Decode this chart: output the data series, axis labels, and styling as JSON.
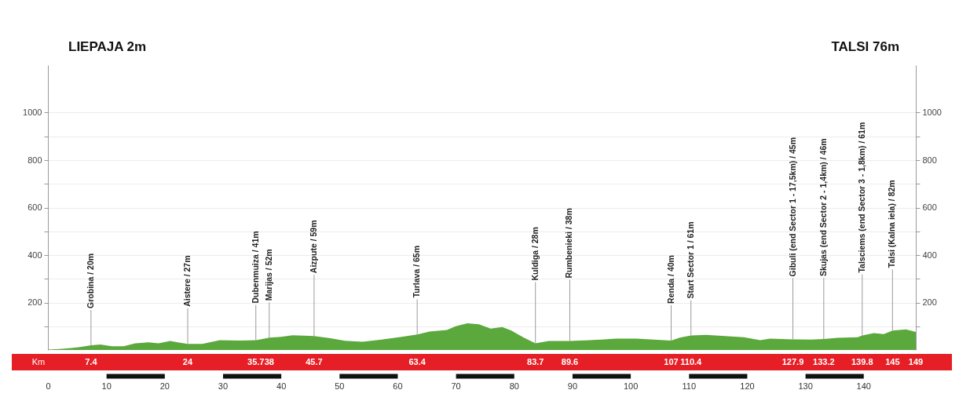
{
  "chart_data": {
    "type": "area",
    "x": [
      0,
      2,
      4,
      5.5,
      7.4,
      9,
      11,
      13,
      15,
      17.3,
      19,
      21,
      22.5,
      24,
      26.5,
      29.5,
      33,
      35.7,
      36.5,
      38,
      40,
      42,
      44,
      45.7,
      48.5,
      51,
      54,
      57,
      60,
      63.4,
      65.5,
      68.5,
      70,
      72,
      74,
      76,
      78,
      79.5,
      81.7,
      83.7,
      86,
      89.6,
      93,
      97.5,
      101,
      104.6,
      107,
      108.5,
      110.4,
      113,
      119.5,
      122.3,
      124,
      127.9,
      131,
      133.2,
      135.5,
      139,
      139.8,
      141.8,
      143.5,
      145,
      147.3,
      149
    ],
    "series": [
      {
        "color": "#5ba83d",
        "values": [
          2,
          4,
          8,
          12,
          20,
          23,
          16,
          16,
          28,
          32,
          28,
          38,
          31,
          26,
          26,
          41,
          40,
          41,
          45,
          52,
          55,
          62,
          60,
          59,
          50,
          39,
          35,
          43,
          53,
          65,
          78,
          84,
          100,
          112,
          108,
          90,
          97,
          83,
          52,
          28,
          38,
          38,
          41,
          48,
          48,
          43,
          40,
          52,
          61,
          64,
          54,
          41,
          48,
          45,
          44,
          46,
          51,
          54,
          61,
          71,
          67,
          82,
          87,
          76
        ]
      }
    ],
    "xlim": [
      0,
      149
    ],
    "xticks": [
      0,
      10,
      20,
      30,
      40,
      50,
      60,
      70,
      80,
      90,
      100,
      110,
      120,
      130,
      140
    ],
    "ylim": [
      0,
      1200
    ],
    "yticks": [
      {
        "value": 100,
        "label": null
      },
      200,
      {
        "value": 300,
        "label": null
      },
      400,
      {
        "value": 500,
        "label": null
      },
      600,
      {
        "value": 700,
        "label": null
      },
      800,
      {
        "value": 900,
        "label": null
      },
      1000
    ],
    "y2lim": [
      0,
      1200
    ],
    "y2ticks": [
      {
        "value": 100,
        "label": null
      },
      200,
      {
        "value": 300,
        "label": null
      },
      400,
      {
        "value": 500,
        "label": null
      },
      600,
      {
        "value": 700,
        "label": null
      },
      800,
      {
        "value": 900,
        "label": null
      },
      1000
    ],
    "x2lim": [
      0,
      149
    ],
    "x2ticks": [
      7.4,
      24,
      35.7,
      38,
      45.7,
      63.4,
      83.7,
      89.6,
      107,
      110.4,
      127.9,
      133.2,
      139.8,
      145,
      149
    ],
    "x2label": "Km",
    "grid": "y",
    "annotations": [
      "LIEPAJA 2m",
      "TALSI 76m",
      {
        "text": "Grobina / 20m",
        "x": 7.4,
        "y": 20
      },
      {
        "text": "Aistere / 27m",
        "x": 24,
        "y": 27
      },
      {
        "text": "Dubenmuiza / 41m",
        "x": 35.7,
        "y": 41
      },
      {
        "text": "Marijas / 52m",
        "x": 38,
        "y": 52
      },
      {
        "text": "Aizpute / 59m",
        "x": 45.7,
        "y": 59
      },
      {
        "text": "Turlava / 65m",
        "x": 63.4,
        "y": 65
      },
      {
        "text": "Kuldiga / 28m",
        "x": 83.7,
        "y": 28
      },
      {
        "text": "Rumbenieki / 38m",
        "x": 89.6,
        "y": 38
      },
      {
        "text": "Renda / 40m",
        "x": 107,
        "y": 40
      },
      {
        "text": "Start Sector 1 / 61m",
        "x": 110.4,
        "y": 61
      },
      {
        "text": "Gibuli (end Sector 1 - 17,5km) / 45m",
        "x": 127.9,
        "y": 45
      },
      {
        "text": "Skujas (end Sector 2 - 1,4km) / 46m",
        "x": 133.2,
        "y": 46
      },
      {
        "text": "Talsciems (end Sector 3 - 1,8km) / 61m",
        "x": 139.8,
        "y": 61
      },
      {
        "text": "Talsi (Kalna iela) / 82m",
        "x": 145,
        "y": 82
      }
    ]
  }
}
